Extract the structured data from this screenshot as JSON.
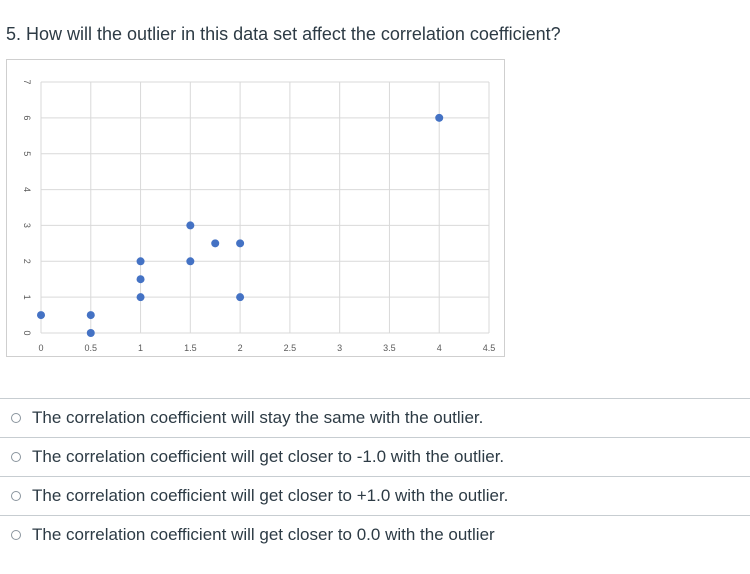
{
  "question": {
    "text": "5. How will the outlier in this data set affect the correlation coefficient?"
  },
  "answers": [
    {
      "label": "The correlation coefficient will stay the same with the outlier."
    },
    {
      "label": "The correlation coefficient will get closer to -1.0 with the outlier."
    },
    {
      "label": "The correlation coefficient will get closer to +1.0 with the outlier."
    },
    {
      "label": "The correlation coefficient will get closer to 0.0 with the outlier"
    }
  ],
  "chart_data": {
    "type": "scatter",
    "title": "",
    "xlabel": "",
    "ylabel": "",
    "xlim": [
      0,
      4.5
    ],
    "ylim": [
      0,
      7
    ],
    "x_ticks": [
      "0",
      "0.5",
      "1",
      "1.5",
      "2",
      "2.5",
      "3",
      "3.5",
      "4",
      "4.5"
    ],
    "y_ticks": [
      "0",
      "1",
      "2",
      "3",
      "4",
      "5",
      "6",
      "7"
    ],
    "grid": true,
    "marker_color": "#4472c4",
    "series": [
      {
        "points": [
          {
            "x": 0,
            "y": 0.5
          },
          {
            "x": 0.5,
            "y": 0.5
          },
          {
            "x": 0.5,
            "y": 0
          },
          {
            "x": 1,
            "y": 2
          },
          {
            "x": 1,
            "y": 1.5
          },
          {
            "x": 1,
            "y": 1
          },
          {
            "x": 1.5,
            "y": 3
          },
          {
            "x": 1.5,
            "y": 2
          },
          {
            "x": 1.75,
            "y": 2.5
          },
          {
            "x": 2,
            "y": 2.5
          },
          {
            "x": 2,
            "y": 1
          },
          {
            "x": 4,
            "y": 6
          }
        ]
      }
    ]
  }
}
